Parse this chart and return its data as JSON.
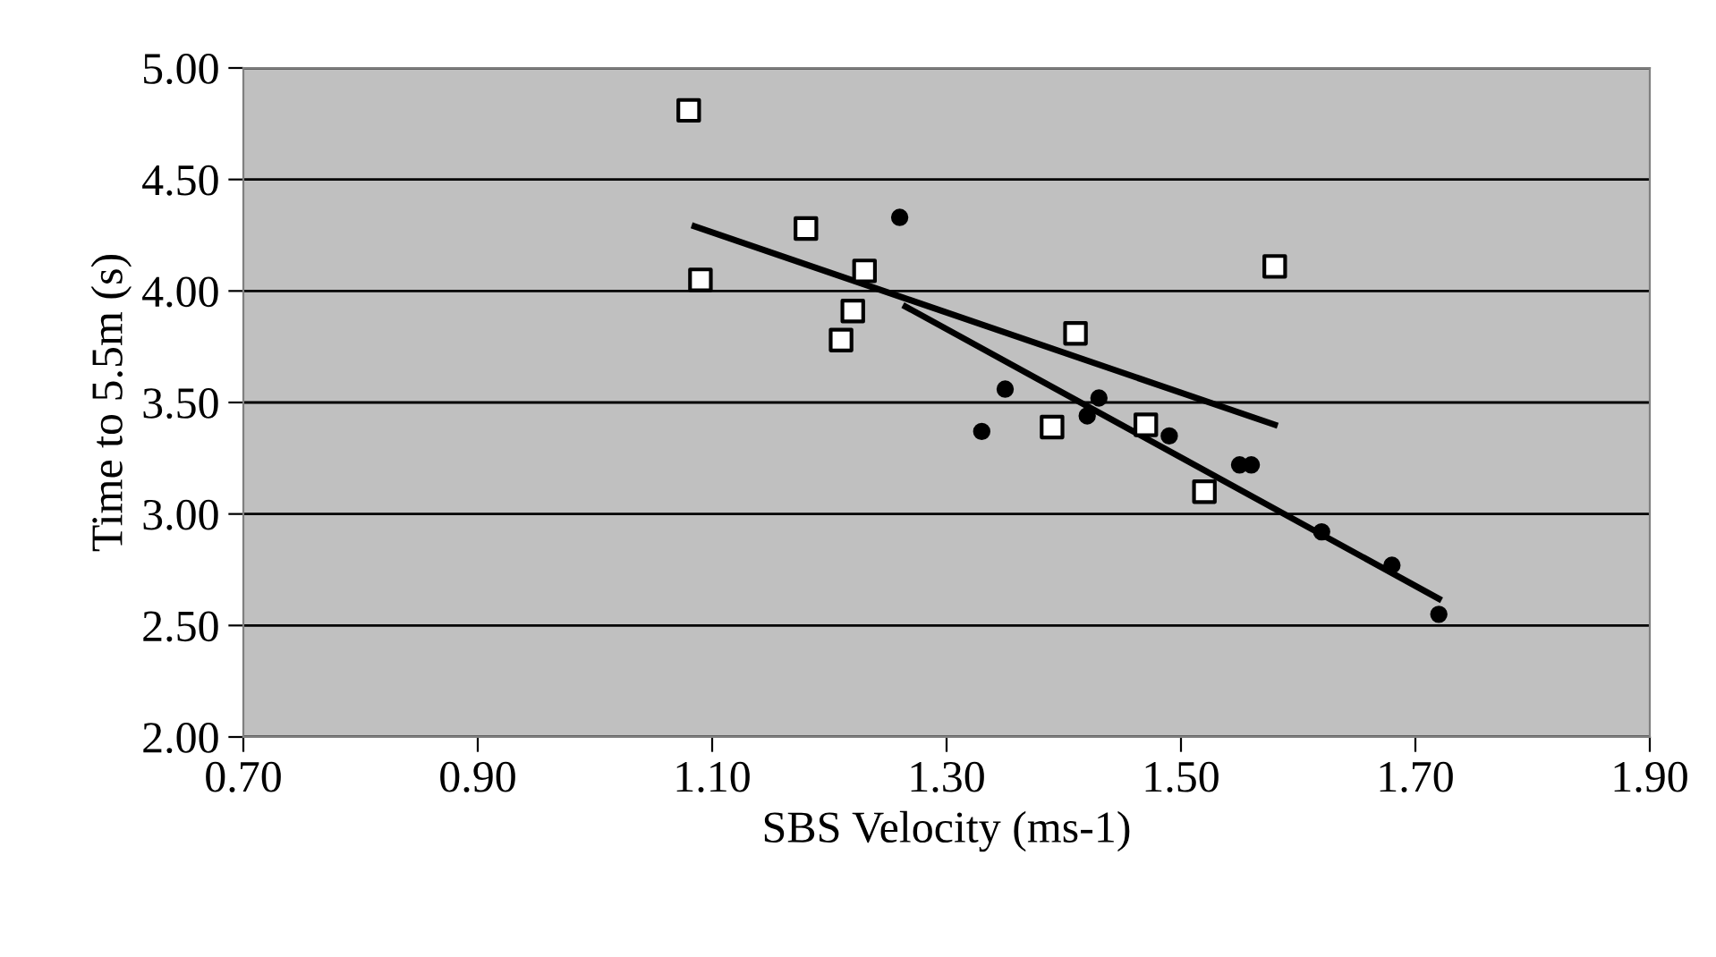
{
  "chart_data": {
    "type": "scatter",
    "xlabel": "SBS Velocity (ms-1)",
    "ylabel": "Time to 5.5m (s)",
    "xlim": [
      0.7,
      1.9
    ],
    "ylim": [
      2.0,
      5.0
    ],
    "xticks": [
      {
        "value": 0.7,
        "label": "0.70"
      },
      {
        "value": 0.9,
        "label": "0.90"
      },
      {
        "value": 1.1,
        "label": "1.10"
      },
      {
        "value": 1.3,
        "label": "1.30"
      },
      {
        "value": 1.5,
        "label": "1.50"
      },
      {
        "value": 1.7,
        "label": "1.70"
      },
      {
        "value": 1.9,
        "label": "1.90"
      }
    ],
    "yticks": [
      {
        "value": 2.0,
        "label": "2.00"
      },
      {
        "value": 2.5,
        "label": "2.50"
      },
      {
        "value": 3.0,
        "label": "3.00"
      },
      {
        "value": 3.5,
        "label": "3.50"
      },
      {
        "value": 4.0,
        "label": "4.00"
      },
      {
        "value": 4.5,
        "label": "4.50"
      },
      {
        "value": 5.0,
        "label": "5.00"
      }
    ],
    "grid": "y",
    "legend": false,
    "series": [
      {
        "marker": "square",
        "color": "#ffffff",
        "x": [
          1.08,
          1.09,
          1.18,
          1.23,
          1.22,
          1.21,
          1.41,
          1.39,
          1.47,
          1.52,
          1.58
        ],
        "values": [
          4.81,
          4.05,
          4.28,
          4.09,
          3.91,
          3.78,
          3.81,
          3.39,
          3.4,
          3.1,
          4.11
        ]
      },
      {
        "marker": "circle",
        "color": "#000000",
        "x": [
          1.26,
          1.35,
          1.33,
          1.42,
          1.43,
          1.49,
          1.55,
          1.56,
          1.62,
          1.68,
          1.72
        ],
        "values": [
          4.33,
          3.56,
          3.37,
          3.44,
          3.52,
          3.35,
          3.22,
          3.22,
          2.92,
          2.77,
          2.55
        ]
      },
      {
        "type": "line",
        "marker": "none",
        "color": "#000000",
        "x": [
          1.085,
          1.58
        ],
        "values": [
          4.29,
          3.4
        ]
      },
      {
        "type": "line",
        "marker": "none",
        "color": "#000000",
        "x": [
          1.265,
          1.72
        ],
        "values": [
          3.93,
          2.62
        ]
      }
    ]
  }
}
